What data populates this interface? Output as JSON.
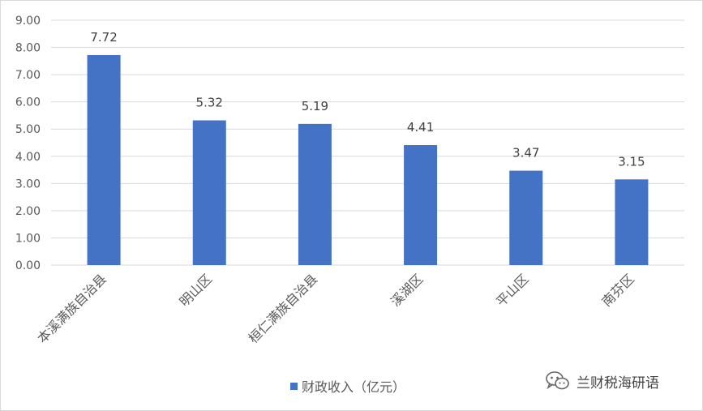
{
  "chart_data": {
    "type": "bar",
    "categories": [
      "本溪满族自治县",
      "明山区",
      "桓仁满族自治县",
      "溪湖区",
      "平山区",
      "南芬区"
    ],
    "series": [
      {
        "name": "财政收入（亿元）",
        "values": [
          7.72,
          5.32,
          5.19,
          4.41,
          3.47,
          3.15
        ],
        "color": "#4472c4"
      }
    ],
    "value_labels": [
      "7.72",
      "5.32",
      "5.19",
      "4.41",
      "3.47",
      "3.15"
    ],
    "y_ticks": [
      "0.00",
      "1.00",
      "2.00",
      "3.00",
      "4.00",
      "5.00",
      "6.00",
      "7.00",
      "8.00",
      "9.00"
    ],
    "ylim": [
      0,
      9
    ],
    "grid": true,
    "legend_position": "bottom"
  },
  "legend": {
    "label": "财政收入（亿元）"
  },
  "watermark": {
    "text": "兰财税海研语",
    "icon": "wechat-icon"
  },
  "colors": {
    "bar": "#4472c4",
    "grid": "#d9d9d9",
    "text": "#595959"
  }
}
